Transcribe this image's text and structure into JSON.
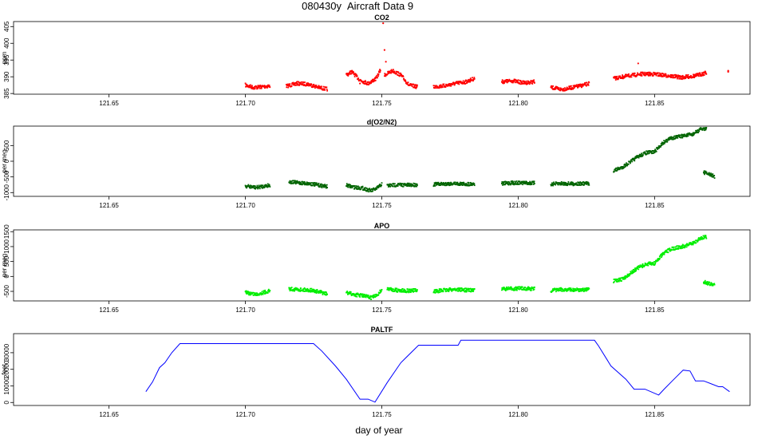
{
  "page": {
    "title_id": "080430y",
    "title_text": "Aircraft Data 9",
    "xlabel": "day of year"
  },
  "colors": {
    "co2": "#ff0000",
    "o2n2": "#006400",
    "apo": "#00ee00",
    "paltf": "#0000ff"
  },
  "chart_data": [
    {
      "type": "scatter",
      "title": "CO2",
      "ylabel": "ppm",
      "xlim": [
        121.615,
        121.885
      ],
      "ylim": [
        384.8,
        406.5
      ],
      "x_ticks": [
        "121.65",
        "121.70",
        "121.75",
        "121.80",
        "121.85"
      ],
      "y_ticks": [
        "385",
        "390",
        "395",
        "400",
        "405"
      ],
      "series": [
        {
          "color": "#ff0000",
          "segments": [
            {
              "x": [
                121.7,
                121.703,
                121.706,
                121.709
              ],
              "y": [
                387.5,
                386.8,
                387.0,
                387.3
              ]
            },
            {
              "x": [
                121.715,
                121.719,
                121.723,
                121.727,
                121.73
              ],
              "y": [
                387.2,
                388.0,
                387.8,
                386.8,
                386.3
              ]
            },
            {
              "x": [
                121.737,
                121.739,
                121.742,
                121.745,
                121.748,
                121.7495
              ],
              "y": [
                390.5,
                391.5,
                389.0,
                388.0,
                389.5,
                392.0
              ]
            },
            {
              "x": [
                121.751,
                121.754,
                121.757,
                121.76,
                121.763
              ],
              "y": [
                390.5,
                391.8,
                390.5,
                387.5,
                387.0
              ]
            },
            {
              "x": [
                121.769,
                121.773,
                121.777,
                121.781,
                121.784
              ],
              "y": [
                387.0,
                387.3,
                388.0,
                388.5,
                389.5
              ]
            },
            {
              "x": [
                121.794,
                121.798,
                121.802,
                121.806
              ],
              "y": [
                388.5,
                388.8,
                388.2,
                388.5
              ]
            },
            {
              "x": [
                121.812,
                121.816,
                121.82,
                121.824,
                121.826
              ],
              "y": [
                386.8,
                386.2,
                386.8,
                387.5,
                388.0
              ]
            },
            {
              "x": [
                121.835,
                121.84,
                121.845,
                121.85,
                121.855,
                121.86,
                121.865,
                121.869
              ],
              "y": [
                389.5,
                390.2,
                390.8,
                390.8,
                390.3,
                389.8,
                390.3,
                391.2
              ]
            },
            {
              "x": [
                121.877
              ],
              "y": [
                391.5
              ]
            }
          ],
          "spikes": [
            {
              "x": 121.7505,
              "y": 406.0
            },
            {
              "x": 121.751,
              "y": 398.0
            },
            {
              "x": 121.7515,
              "y": 394.5
            },
            {
              "x": 121.7465,
              "y": 388.5
            },
            {
              "x": 121.742,
              "y": 388.0
            },
            {
              "x": 121.844,
              "y": 394.0
            },
            {
              "x": 121.877,
              "y": 391.8
            }
          ]
        }
      ]
    },
    {
      "type": "scatter",
      "title": "d(O2/N2)",
      "ylabel": "per meg",
      "xlim": [
        121.615,
        121.885
      ],
      "ylim": [
        -1120,
        1120
      ],
      "x_ticks": [
        "121.65",
        "121.70",
        "121.75",
        "121.80",
        "121.85"
      ],
      "y_ticks": [
        "-1000",
        "-500",
        "0",
        "500"
      ],
      "y_tick_values": [
        -1000,
        -500,
        0,
        500
      ],
      "series": [
        {
          "color": "#006400",
          "segments": [
            {
              "x": [
                121.7,
                121.704,
                121.709
              ],
              "y": [
                -790,
                -840,
                -760
              ]
            },
            {
              "x": [
                121.716,
                121.72,
                121.724,
                121.728,
                121.73
              ],
              "y": [
                -660,
                -690,
                -720,
                -780,
                -810
              ]
            },
            {
              "x": [
                121.737,
                121.74,
                121.743,
                121.746,
                121.748,
                121.75
              ],
              "y": [
                -770,
                -830,
                -860,
                -940,
                -880,
                -730
              ]
            },
            {
              "x": [
                121.752,
                121.756,
                121.76,
                121.763
              ],
              "y": [
                -780,
                -750,
                -760,
                -750
              ]
            },
            {
              "x": [
                121.769,
                121.773,
                121.777,
                121.781,
                121.784
              ],
              "y": [
                -740,
                -720,
                -710,
                -730,
                -720
              ]
            },
            {
              "x": [
                121.794,
                121.798,
                121.802,
                121.806
              ],
              "y": [
                -710,
                -690,
                -690,
                -700
              ]
            },
            {
              "x": [
                121.812,
                121.816,
                121.82,
                121.824,
                121.826
              ],
              "y": [
                -730,
                -710,
                -720,
                -715,
                -710
              ]
            },
            {
              "x": [
                121.835,
                121.838,
                121.841,
                121.844,
                121.847,
                121.85,
                121.853,
                121.856,
                121.86,
                121.864,
                121.867,
                121.869
              ],
              "y": [
                -300,
                -200,
                -30,
                150,
                270,
                300,
                580,
                740,
                800,
                860,
                1020,
                1050
              ]
            },
            {
              "x": [
                121.868,
                121.87,
                121.872
              ],
              "y": [
                -350,
                -420,
                -480
              ]
            }
          ]
        }
      ]
    },
    {
      "type": "scatter",
      "title": "APO",
      "ylabel": "per meg",
      "xlim": [
        121.615,
        121.885
      ],
      "ylim": [
        -820,
        1560
      ],
      "x_ticks": [
        "121.65",
        "121.70",
        "121.75",
        "121.80",
        "121.85"
      ],
      "y_ticks": [
        "-500",
        "0",
        "500",
        "1000",
        "1500"
      ],
      "y_tick_values": [
        -500,
        0,
        500,
        1000,
        1500
      ],
      "series": [
        {
          "color": "#00ee00",
          "segments": [
            {
              "x": [
                121.7,
                121.704,
                121.709
              ],
              "y": [
                -540,
                -600,
                -480
              ]
            },
            {
              "x": [
                121.716,
                121.72,
                121.724,
                121.728,
                121.73
              ],
              "y": [
                -420,
                -440,
                -460,
                -540,
                -590
              ]
            },
            {
              "x": [
                121.737,
                121.74,
                121.743,
                121.746,
                121.748,
                121.75
              ],
              "y": [
                -540,
                -610,
                -640,
                -710,
                -650,
                -450
              ]
            },
            {
              "x": [
                121.752,
                121.756,
                121.76,
                121.763
              ],
              "y": [
                -420,
                -470,
                -480,
                -470
              ]
            },
            {
              "x": [
                121.769,
                121.773,
                121.777,
                121.781,
                121.784
              ],
              "y": [
                -500,
                -460,
                -430,
                -460,
                -450
              ]
            },
            {
              "x": [
                121.794,
                121.798,
                121.802,
                121.806
              ],
              "y": [
                -420,
                -410,
                -400,
                -420
              ]
            },
            {
              "x": [
                121.812,
                121.816,
                121.82,
                121.824,
                121.826
              ],
              "y": [
                -470,
                -440,
                -450,
                -445,
                -440
              ]
            },
            {
              "x": [
                121.835,
                121.838,
                121.841,
                121.844,
                121.847,
                121.85,
                121.853,
                121.856,
                121.86,
                121.864,
                121.867,
                121.869
              ],
              "y": [
                -160,
                -100,
                90,
                290,
                410,
                440,
                740,
                920,
                1000,
                1100,
                1290,
                1320
              ]
            },
            {
              "x": [
                121.868,
                121.87,
                121.872
              ],
              "y": [
                -180,
                -240,
                -300
              ]
            }
          ]
        }
      ]
    },
    {
      "type": "line",
      "title": "PALTF",
      "ylabel": "feet",
      "xlim": [
        121.615,
        121.885
      ],
      "ylim": [
        -1800,
        41500
      ],
      "x_ticks": [
        "121.65",
        "121.70",
        "121.75",
        "121.80",
        "121.85"
      ],
      "y_ticks": [
        "0",
        "10000",
        "20000",
        "30000"
      ],
      "y_tick_values": [
        0,
        10000,
        20000,
        30000
      ],
      "series": [
        {
          "color": "#0000ff",
          "x": [
            121.6635,
            121.666,
            121.6685,
            121.6705,
            121.673,
            121.676,
            121.7,
            121.725,
            121.728,
            121.733,
            121.737,
            121.742,
            121.745,
            121.7475,
            121.752,
            121.757,
            121.7635,
            121.778,
            121.779,
            121.8,
            121.828,
            121.8295,
            121.834,
            121.8395,
            121.8425,
            121.8465,
            121.8515,
            121.8535,
            121.8565,
            121.8605,
            121.863,
            121.865,
            121.868,
            121.8735,
            121.875,
            121.8775
          ],
          "y": [
            6500,
            12500,
            21000,
            24000,
            30000,
            35500,
            35500,
            35500,
            31000,
            22000,
            14000,
            2000,
            2000,
            200,
            12000,
            24000,
            34500,
            34500,
            37500,
            37500,
            37500,
            34000,
            22000,
            14000,
            8000,
            8000,
            4500,
            8000,
            13000,
            19500,
            19000,
            13000,
            13000,
            9500,
            9500,
            6500
          ]
        }
      ]
    }
  ]
}
